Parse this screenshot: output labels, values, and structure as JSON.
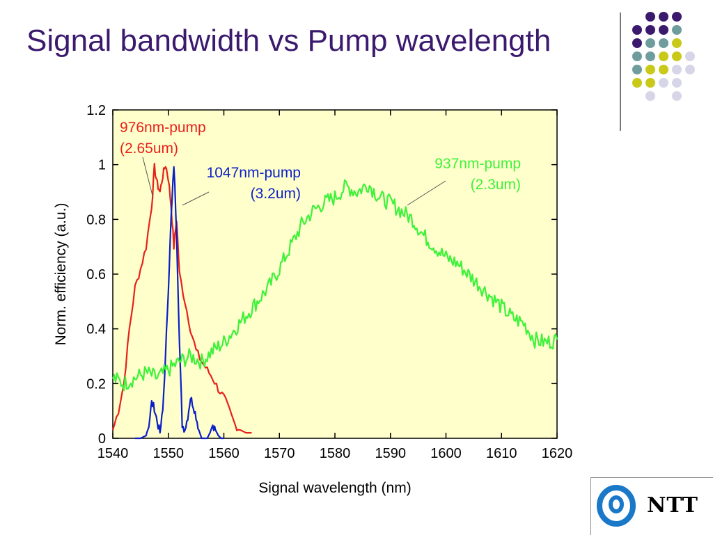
{
  "slide": {
    "title": "Signal bandwidth vs Pump wavelength",
    "logo_text": "NTT"
  },
  "decor": {
    "dot_colors": [
      "#3b1a6e",
      "#6f9c9c",
      "#c9c91a",
      "#d6d6e8"
    ],
    "logo_icon": "ntt-logo-icon"
  },
  "chart_data": {
    "type": "line",
    "title": "",
    "xlabel": "Signal wavelength (nm)",
    "ylabel": "Norm. efficiency (a.u.)",
    "xlim": [
      1540,
      1620
    ],
    "ylim": [
      0,
      1.2
    ],
    "xticks": [
      "1540",
      "1550",
      "1560",
      "1570",
      "1580",
      "1590",
      "1600",
      "1610",
      "1620"
    ],
    "yticks": [
      "0",
      "0.2",
      "0.4",
      "0.6",
      "0.8",
      "1",
      "1.2"
    ],
    "plot_background": "#ffffcc",
    "series": [
      {
        "color": "#e8201c",
        "annotation": [
          "976nm-pump",
          "(2.65um)"
        ],
        "x": [
          1540,
          1541,
          1542,
          1543,
          1544,
          1545,
          1546,
          1547,
          1547.5,
          1548,
          1548.5,
          1549,
          1549.5,
          1550,
          1550.5,
          1551,
          1551.5,
          1552,
          1553,
          1554,
          1555,
          1556,
          1557,
          1558,
          1559,
          1560,
          1561,
          1562,
          1563,
          1564,
          1565
        ],
        "y": [
          0.03,
          0.1,
          0.2,
          0.4,
          0.55,
          0.62,
          0.7,
          0.85,
          0.99,
          0.93,
          0.9,
          0.96,
          1.0,
          0.95,
          0.85,
          0.7,
          0.8,
          0.6,
          0.5,
          0.4,
          0.32,
          0.28,
          0.25,
          0.22,
          0.18,
          0.15,
          0.1,
          0.05,
          0.03,
          0.02,
          0.02
        ]
      },
      {
        "color": "#0a1fc8",
        "annotation": [
          "1047nm-pump",
          "(3.2um)"
        ],
        "x": [
          1544,
          1545,
          1546,
          1546.5,
          1547,
          1547.5,
          1548,
          1548.5,
          1549,
          1549.5,
          1550,
          1550.5,
          1551,
          1551.5,
          1552,
          1552.5,
          1553,
          1553.5,
          1554,
          1554.5,
          1555,
          1555.5,
          1556,
          1556.5,
          1557,
          1557.5,
          1558,
          1558.5,
          1559,
          1559.5,
          1560
        ],
        "y": [
          0,
          0,
          0.01,
          0.05,
          0.13,
          0.11,
          0.06,
          0.02,
          0.1,
          0.3,
          0.55,
          0.8,
          1.0,
          0.75,
          0.35,
          0.05,
          0.03,
          0.08,
          0.15,
          0.12,
          0.08,
          0.03,
          0.0,
          0.0,
          0.0,
          0.02,
          0.05,
          0.03,
          0.01,
          0.0,
          0.0
        ]
      },
      {
        "color": "#3ef23a",
        "annotation": [
          "937nm-pump",
          "(2.3um)"
        ],
        "x": [
          1540,
          1542,
          1544,
          1546,
          1548,
          1550,
          1552,
          1554,
          1556,
          1558,
          1560,
          1562,
          1564,
          1566,
          1568,
          1570,
          1572,
          1574,
          1576,
          1578,
          1580,
          1582,
          1584,
          1586,
          1588,
          1590,
          1592,
          1594,
          1596,
          1598,
          1600,
          1602,
          1604,
          1606,
          1608,
          1610,
          1612,
          1614,
          1616,
          1618,
          1620
        ],
        "y": [
          0.22,
          0.2,
          0.22,
          0.24,
          0.22,
          0.25,
          0.28,
          0.3,
          0.28,
          0.32,
          0.35,
          0.4,
          0.45,
          0.5,
          0.55,
          0.62,
          0.7,
          0.78,
          0.83,
          0.86,
          0.88,
          0.92,
          0.9,
          0.93,
          0.88,
          0.86,
          0.83,
          0.8,
          0.74,
          0.7,
          0.66,
          0.64,
          0.6,
          0.56,
          0.52,
          0.48,
          0.44,
          0.42,
          0.36,
          0.35,
          0.36
        ]
      }
    ]
  }
}
